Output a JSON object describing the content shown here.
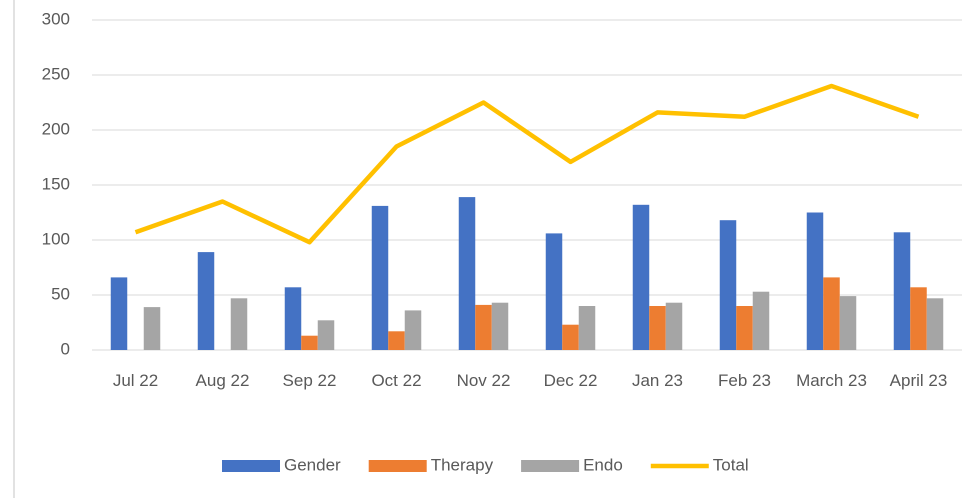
{
  "chart_data": {
    "type": "bar+line",
    "categories": [
      "Jul 22",
      "Aug 22",
      "Sep 22",
      "Oct 22",
      "Nov 22",
      "Dec 22",
      "Jan 23",
      "Feb 23",
      "March 23",
      "April 23"
    ],
    "series": [
      {
        "name": "Gender",
        "type": "bar",
        "color": "#4472c4",
        "values": [
          66,
          89,
          57,
          131,
          139,
          106,
          132,
          118,
          125,
          107
        ]
      },
      {
        "name": "Therapy",
        "type": "bar",
        "color": "#ed7d31",
        "values": [
          0,
          0,
          13,
          17,
          41,
          23,
          40,
          40,
          66,
          57
        ]
      },
      {
        "name": "Endo",
        "type": "bar",
        "color": "#a5a5a5",
        "values": [
          39,
          47,
          27,
          36,
          43,
          40,
          43,
          53,
          49,
          47
        ]
      },
      {
        "name": "Total",
        "type": "line",
        "color": "#ffc000",
        "values": [
          107,
          135,
          98,
          185,
          225,
          171,
          216,
          212,
          240,
          212
        ]
      }
    ],
    "ylim": [
      0,
      300
    ],
    "yticks": [
      0,
      50,
      100,
      150,
      200,
      250,
      300
    ],
    "grid": true,
    "legend": "bottom"
  }
}
